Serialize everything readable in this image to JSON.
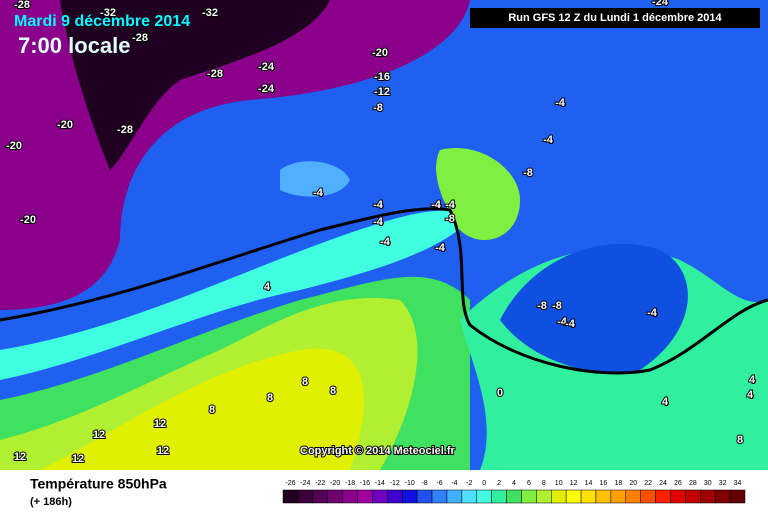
{
  "header": {
    "title": "Mardi 9 décembre 2014",
    "time": "7:00 locale",
    "run": "Run GFS 12 Z du Lundi 1 décembre 2014"
  },
  "map": {
    "copyright": "Copyright © 2014 Meteociel.fr",
    "contour_labels": [
      -28,
      -32,
      -32,
      -28,
      -24,
      -20,
      -16,
      -12,
      -8,
      -24,
      -28,
      -24,
      -20,
      -28,
      -20,
      -20,
      -4,
      -4,
      -4,
      -8,
      -4,
      -4,
      -4,
      -8,
      -4,
      -4,
      -4,
      4,
      -8,
      -8,
      -4,
      -4,
      -4,
      8,
      8,
      8,
      8,
      12,
      12,
      12,
      12,
      12,
      0,
      4,
      4,
      4,
      8
    ]
  },
  "footer": {
    "parameter": "Température 850hPa",
    "lead": "(+ 186h)"
  },
  "legend": {
    "ticks": [
      -26,
      -24,
      -22,
      -20,
      -18,
      -16,
      -14,
      -12,
      -10,
      -8,
      -6,
      -4,
      -2,
      0,
      2,
      4,
      6,
      8,
      10,
      12,
      14,
      16,
      18,
      20,
      22,
      24,
      26,
      28,
      30,
      32,
      34
    ],
    "colors": [
      "#200020",
      "#3a003a",
      "#550055",
      "#700070",
      "#8a008a",
      "#a000a0",
      "#7000c0",
      "#4000d0",
      "#1010e0",
      "#2050f0",
      "#3080ff",
      "#40b0ff",
      "#50e0ff",
      "#40ffe0",
      "#30f0a0",
      "#40e060",
      "#80f040",
      "#b0f030",
      "#e0f000",
      "#ffff00",
      "#ffe000",
      "#ffc000",
      "#ffa000",
      "#ff8000",
      "#ff5000",
      "#ff2000",
      "#e00000",
      "#c00000",
      "#a00000",
      "#800000",
      "#600000"
    ]
  }
}
